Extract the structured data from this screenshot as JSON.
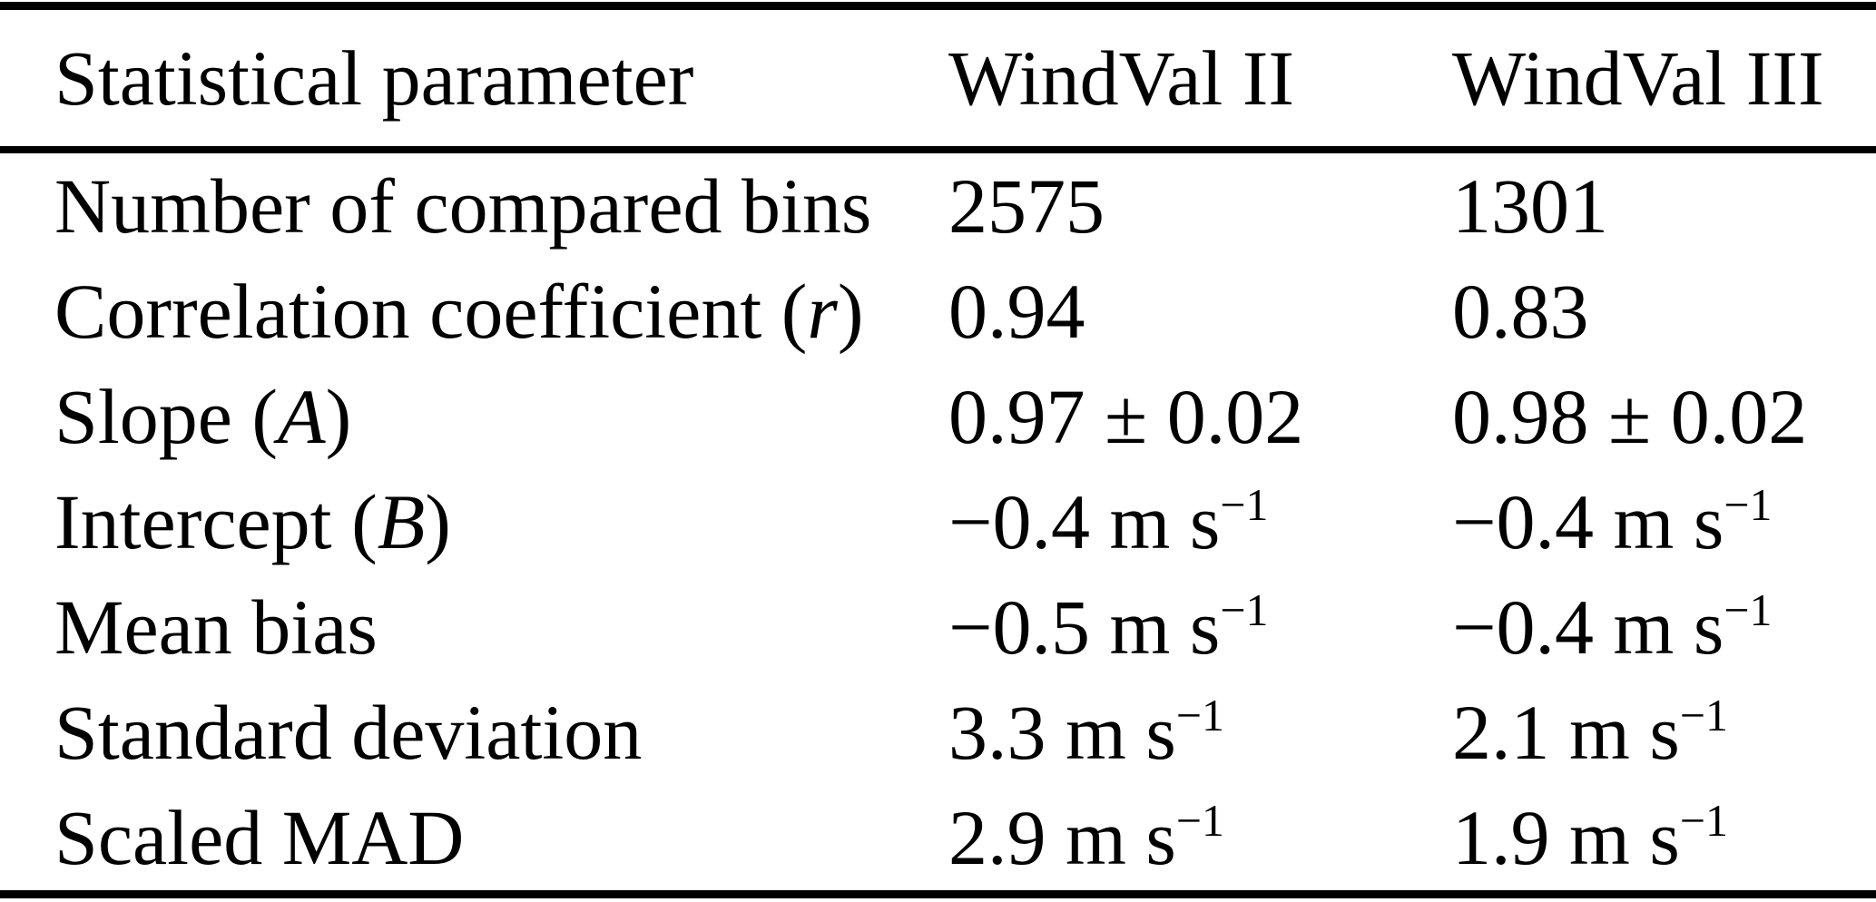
{
  "colors": {
    "background": "#ffffff",
    "text": "#000000",
    "rule": "#000000"
  },
  "table": {
    "columns": [
      "Statistical parameter",
      "WindVal II",
      "WindVal III"
    ],
    "rows": [
      {
        "param": {
          "prefix": "Number of compared bins",
          "var": "",
          "suffix": ""
        },
        "windval2": {
          "base": "2575",
          "sup": ""
        },
        "windval3": {
          "base": "1301",
          "sup": ""
        }
      },
      {
        "param": {
          "prefix": "Correlation coefficient (",
          "var": "r",
          "suffix": ")"
        },
        "windval2": {
          "base": "0.94",
          "sup": ""
        },
        "windval3": {
          "base": "0.83",
          "sup": ""
        }
      },
      {
        "param": {
          "prefix": "Slope (",
          "var": "A",
          "suffix": ")"
        },
        "windval2": {
          "base": "0.97 ± 0.02",
          "sup": ""
        },
        "windval3": {
          "base": "0.98 ± 0.02",
          "sup": ""
        }
      },
      {
        "param": {
          "prefix": "Intercept (",
          "var": "B",
          "suffix": ")"
        },
        "windval2": {
          "base": "−0.4 m s",
          "sup": "−1"
        },
        "windval3": {
          "base": "−0.4 m s",
          "sup": "−1"
        }
      },
      {
        "param": {
          "prefix": "Mean bias",
          "var": "",
          "suffix": ""
        },
        "windval2": {
          "base": "−0.5 m s",
          "sup": "−1"
        },
        "windval3": {
          "base": "−0.4 m s",
          "sup": "−1"
        }
      },
      {
        "param": {
          "prefix": "Standard deviation",
          "var": "",
          "suffix": ""
        },
        "windval2": {
          "base": "3.3 m s",
          "sup": "−1"
        },
        "windval3": {
          "base": "2.1 m s",
          "sup": "−1"
        }
      },
      {
        "param": {
          "prefix": "Scaled MAD",
          "var": "",
          "suffix": ""
        },
        "windval2": {
          "base": "2.9 m s",
          "sup": "−1"
        },
        "windval3": {
          "base": "1.9 m s",
          "sup": "−1"
        }
      }
    ]
  }
}
